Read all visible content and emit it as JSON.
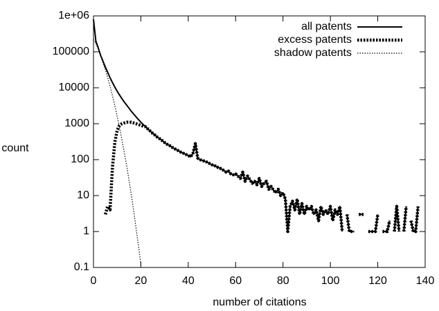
{
  "chart_data": {
    "type": "line",
    "xlabel": "number of citations",
    "ylabel": "count",
    "log_y": true,
    "legend": "top right",
    "xlim": [
      0,
      140
    ],
    "xticks": [
      0,
      20,
      40,
      60,
      80,
      100,
      120,
      140
    ],
    "ylim": [
      0.1,
      1000000
    ],
    "yticks": [
      0.1,
      1,
      10,
      100,
      1000,
      10000,
      100000,
      {
        "value": 1000000,
        "label": "1e+06"
      }
    ],
    "x": [
      0,
      1,
      2,
      3,
      4,
      5,
      6,
      7,
      8,
      9,
      10,
      11,
      12,
      13,
      14,
      15,
      16,
      17,
      18,
      19,
      20,
      21,
      22,
      23,
      24,
      25,
      26,
      27,
      28,
      29,
      30,
      31,
      32,
      33,
      34,
      35,
      36,
      37,
      38,
      39,
      40,
      41,
      42,
      43,
      44,
      45,
      46,
      47,
      48,
      49,
      50,
      51,
      52,
      53,
      54,
      55,
      56,
      57,
      58,
      59,
      60,
      61,
      62,
      63,
      64,
      65,
      66,
      67,
      68,
      69,
      70,
      71,
      72,
      73,
      74,
      75,
      76,
      77,
      78,
      79,
      80,
      81,
      82,
      83,
      84,
      85,
      86,
      87,
      88,
      89,
      90,
      91,
      92,
      93,
      94,
      95,
      96,
      97,
      98,
      99,
      100,
      101,
      102,
      103,
      104,
      105,
      106,
      107,
      108,
      109,
      110,
      111,
      112,
      113,
      114,
      115,
      116,
      117,
      118,
      119,
      120,
      121,
      122,
      123,
      124,
      125,
      126,
      127,
      128,
      129,
      130,
      131,
      132,
      133,
      134,
      135,
      136,
      137,
      138
    ],
    "series": [
      {
        "name": "all patents",
        "color": "#000000",
        "style": "solid",
        "values": [
          800000,
          200000,
          130000,
          80000,
          55000,
          38000,
          27000,
          19000,
          14000,
          10500,
          8000,
          6300,
          5000,
          4000,
          3300,
          2700,
          2200,
          1850,
          1550,
          1300,
          1100,
          950,
          820,
          710,
          620,
          540,
          480,
          420,
          380,
          340,
          300,
          270,
          250,
          225,
          205,
          190,
          175,
          160,
          150,
          140,
          130,
          120,
          150,
          280,
          110,
          100,
          95,
          90,
          85,
          78,
          72,
          70,
          62,
          60,
          55,
          50,
          45,
          48,
          40,
          38,
          40,
          35,
          30,
          45,
          25,
          35,
          28,
          22,
          25,
          20,
          30,
          18,
          22,
          25,
          15,
          18,
          14,
          12,
          15,
          10,
          12,
          8,
          1,
          5,
          7,
          4,
          8,
          3,
          6,
          3,
          5,
          4,
          5,
          3,
          4,
          2,
          5,
          3,
          4,
          3,
          5,
          2,
          4,
          3,
          5,
          1,
          null,
          3,
          1,
          1,
          1,
          null,
          3,
          3,
          3,
          null,
          1,
          1,
          1,
          1,
          3,
          null,
          1,
          1,
          1,
          2,
          null,
          1,
          5,
          1,
          null,
          1,
          5,
          null,
          2,
          1,
          1,
          5,
          null
        ]
      },
      {
        "name": "excess patents",
        "color": "#000000",
        "style": "thick-dotted",
        "values": [
          700000,
          null,
          null,
          null,
          null,
          3,
          5,
          4,
          60,
          300,
          650,
          900,
          1000,
          1050,
          1100,
          1100,
          1100,
          1050,
          1000,
          950,
          900,
          850,
          820,
          710,
          620,
          540,
          480,
          420,
          380,
          340,
          300,
          270,
          250,
          225,
          205,
          190,
          175,
          160,
          150,
          140,
          130,
          120,
          150,
          280,
          110,
          100,
          95,
          90,
          85,
          78,
          72,
          70,
          62,
          60,
          55,
          50,
          45,
          48,
          40,
          38,
          40,
          35,
          30,
          45,
          25,
          35,
          28,
          22,
          25,
          20,
          30,
          18,
          22,
          25,
          15,
          18,
          14,
          12,
          15,
          10,
          12,
          8,
          1,
          5,
          7,
          4,
          8,
          3,
          6,
          3,
          5,
          4,
          5,
          3,
          4,
          2,
          5,
          3,
          4,
          3,
          5,
          2,
          4,
          3,
          5,
          1,
          null,
          3,
          1,
          1,
          1,
          null,
          3,
          3,
          3,
          null,
          1,
          1,
          1,
          1,
          3,
          null,
          1,
          1,
          1,
          2,
          null,
          1,
          5,
          1,
          null,
          1,
          5,
          null,
          2,
          1,
          1,
          5,
          null
        ]
      },
      {
        "name": "shadow patents",
        "color": "#000000",
        "style": "thin-dotted",
        "values": [
          220000,
          170000,
          120000,
          80000,
          50000,
          32000,
          19000,
          11000,
          6000,
          3200,
          1600,
          780,
          360,
          160,
          68,
          27,
          10,
          3.6,
          1.2,
          0.4,
          0.12,
          null,
          null,
          null,
          null,
          null,
          null,
          null,
          null,
          null,
          null,
          null,
          null,
          null,
          null,
          null,
          null,
          null,
          null,
          null,
          null,
          null,
          null,
          null,
          null,
          null,
          null,
          null,
          null,
          null,
          null,
          null,
          null,
          null,
          null,
          null,
          null,
          null,
          null,
          null,
          null,
          null,
          null,
          null,
          null,
          null,
          null,
          null,
          null,
          null,
          null,
          null,
          null,
          null,
          null,
          null,
          null,
          null,
          null,
          null,
          null,
          null,
          null,
          null,
          null,
          null,
          null,
          null,
          null,
          null,
          null,
          null,
          null,
          null,
          null,
          null,
          null,
          null,
          null,
          null,
          null,
          null,
          null,
          null,
          null,
          null,
          null,
          null,
          null,
          null,
          null,
          null,
          null,
          null,
          null,
          null,
          null,
          null,
          null,
          null,
          null,
          null,
          null,
          null,
          null,
          null,
          null,
          null,
          null,
          null,
          null,
          null,
          null,
          null,
          null,
          null,
          null,
          null,
          null
        ]
      }
    ]
  }
}
